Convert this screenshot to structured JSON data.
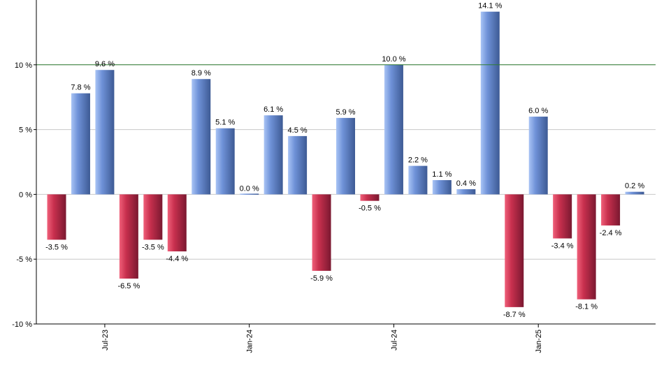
{
  "chart_data": {
    "type": "bar",
    "title": "",
    "xlabel": "",
    "ylabel": "",
    "ylim": [
      -10,
      15
    ],
    "y_ticks": [
      -10,
      -5,
      0,
      5,
      10
    ],
    "y_tick_labels": [
      "-10 %",
      "-5 %",
      "0 %",
      "5 %",
      "10 %"
    ],
    "reference_line": 10,
    "grid": true,
    "values": [
      -3.5,
      7.8,
      9.6,
      -6.5,
      -3.5,
      -4.4,
      8.9,
      5.1,
      0.0,
      6.1,
      4.5,
      -5.9,
      5.9,
      -0.5,
      10.0,
      2.2,
      1.1,
      0.4,
      14.1,
      -8.7,
      6.0,
      -3.4,
      -8.1,
      -2.4,
      0.2
    ],
    "value_labels": [
      "-3.5 %",
      "7.8 %",
      "9.6 %",
      "-6.5 %",
      "-3.5 %",
      "-4.4 %",
      "8.9 %",
      "5.1 %",
      "0.0 %",
      "6.1 %",
      "4.5 %",
      "-5.9 %",
      "5.9 %",
      "-0.5 %",
      "10.0 %",
      "2.2 %",
      "1.1 %",
      "0.4 %",
      "14.1 %",
      "-8.7 %",
      "6.0 %",
      "-3.4 %",
      "-8.1 %",
      "-2.4 %",
      "0.2 %"
    ],
    "x_ticks": [
      {
        "index": 2,
        "label": "Jul-23"
      },
      {
        "index": 8,
        "label": "Jan-24"
      },
      {
        "index": 14,
        "label": "Jul-24"
      },
      {
        "index": 20,
        "label": "Jan-25"
      }
    ],
    "colors": {
      "positive_light": "#a9c4f5",
      "positive_mid": "#6f92d8",
      "positive_dark": "#3d5a94",
      "negative_light": "#f0607a",
      "negative_mid": "#c8304e",
      "negative_dark": "#7a1830",
      "reference_line": "#2e7d32",
      "grid": "#c8c8c8",
      "axis": "#000000"
    }
  }
}
